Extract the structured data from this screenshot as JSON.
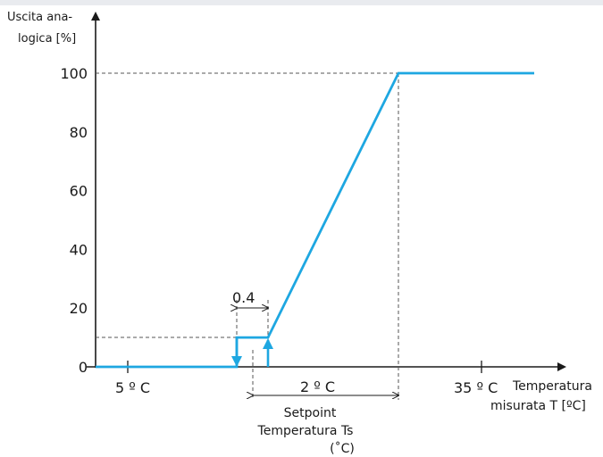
{
  "chart_data": {
    "type": "line",
    "ylabel": [
      "Uscita ana-",
      "logica [%]"
    ],
    "xlabel": [
      "Temperatura",
      "misurata T [ºC]"
    ],
    "yticks": [
      "0",
      "20",
      "40",
      "60",
      "80",
      "100"
    ],
    "ytick_values": [
      0,
      20,
      40,
      60,
      80,
      100
    ],
    "ylim": [
      0,
      100
    ],
    "xtick_labels": [
      "5 º C",
      "35 º C"
    ],
    "series": [
      {
        "points": [
          [
            0,
            0
          ],
          [
            1,
            0
          ],
          [
            1,
            10
          ],
          [
            2,
            10
          ],
          [
            3,
            100
          ],
          [
            4,
            100
          ]
        ]
      }
    ],
    "annotations": {
      "hysteresis": "0.4",
      "band": "2 º C",
      "setpoint": [
        "Setpoint",
        "Temperatura Ts",
        "(˚C)"
      ]
    }
  },
  "colors": {
    "line": "#1ea7e1",
    "axis": "#1a1a1a",
    "guide": "#555555"
  }
}
